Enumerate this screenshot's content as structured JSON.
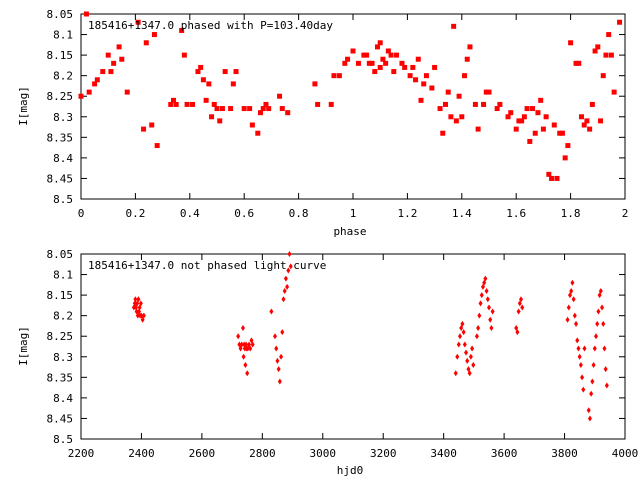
{
  "chart_data": [
    {
      "type": "scatter",
      "title": "185416+1347.0 phased with P=103.40day",
      "xlabel": "phase",
      "ylabel": "I[mag]",
      "xlim": [
        0,
        2
      ],
      "ylim": [
        8.5,
        8.05
      ],
      "y_inverted": true,
      "grid": false,
      "color": "#ff0000",
      "x_ticks": [
        "0",
        "0.2",
        "0.4",
        "0.6",
        "0.8",
        "1",
        "1.2",
        "1.4",
        "1.6",
        "1.8",
        "2"
      ],
      "y_ticks": [
        "8.05",
        "8.1",
        "8.15",
        "8.2",
        "8.25",
        "8.3",
        "8.35",
        "8.4",
        "8.45",
        "8.5"
      ],
      "points": [
        [
          0.0,
          8.25
        ],
        [
          0.02,
          8.05
        ],
        [
          0.03,
          8.24
        ],
        [
          0.05,
          8.22
        ],
        [
          0.06,
          8.21
        ],
        [
          0.08,
          8.19
        ],
        [
          0.1,
          8.15
        ],
        [
          0.11,
          8.19
        ],
        [
          0.12,
          8.17
        ],
        [
          0.14,
          8.13
        ],
        [
          0.15,
          8.16
        ],
        [
          0.17,
          8.24
        ],
        [
          0.21,
          8.07
        ],
        [
          0.23,
          8.33
        ],
        [
          0.24,
          8.12
        ],
        [
          0.26,
          8.32
        ],
        [
          0.27,
          8.1
        ],
        [
          0.28,
          8.37
        ],
        [
          0.33,
          8.27
        ],
        [
          0.34,
          8.26
        ],
        [
          0.35,
          8.27
        ],
        [
          0.37,
          8.09
        ],
        [
          0.38,
          8.15
        ],
        [
          0.39,
          8.27
        ],
        [
          0.41,
          8.27
        ],
        [
          0.43,
          8.19
        ],
        [
          0.44,
          8.18
        ],
        [
          0.45,
          8.21
        ],
        [
          0.46,
          8.26
        ],
        [
          0.47,
          8.22
        ],
        [
          0.48,
          8.3
        ],
        [
          0.49,
          8.27
        ],
        [
          0.5,
          8.28
        ],
        [
          0.51,
          8.31
        ],
        [
          0.52,
          8.28
        ],
        [
          0.53,
          8.19
        ],
        [
          0.55,
          8.28
        ],
        [
          0.56,
          8.22
        ],
        [
          0.57,
          8.19
        ],
        [
          0.6,
          8.28
        ],
        [
          0.62,
          8.28
        ],
        [
          0.63,
          8.32
        ],
        [
          0.65,
          8.34
        ],
        [
          0.66,
          8.29
        ],
        [
          0.67,
          8.28
        ],
        [
          0.68,
          8.27
        ],
        [
          0.69,
          8.28
        ],
        [
          0.73,
          8.25
        ],
        [
          0.74,
          8.28
        ],
        [
          0.76,
          8.29
        ],
        [
          0.86,
          8.22
        ],
        [
          0.87,
          8.27
        ],
        [
          0.92,
          8.27
        ],
        [
          0.93,
          8.2
        ],
        [
          0.95,
          8.2
        ],
        [
          0.97,
          8.17
        ],
        [
          0.98,
          8.16
        ],
        [
          1.0,
          8.14
        ],
        [
          1.02,
          8.17
        ],
        [
          1.04,
          8.15
        ],
        [
          1.05,
          8.15
        ],
        [
          1.06,
          8.17
        ],
        [
          1.07,
          8.17
        ],
        [
          1.08,
          8.19
        ],
        [
          1.09,
          8.13
        ],
        [
          1.1,
          8.12
        ],
        [
          1.1,
          8.18
        ],
        [
          1.11,
          8.16
        ],
        [
          1.12,
          8.17
        ],
        [
          1.13,
          8.14
        ],
        [
          1.14,
          8.15
        ],
        [
          1.15,
          8.19
        ],
        [
          1.16,
          8.15
        ],
        [
          1.18,
          8.17
        ],
        [
          1.19,
          8.18
        ],
        [
          1.21,
          8.2
        ],
        [
          1.22,
          8.18
        ],
        [
          1.23,
          8.21
        ],
        [
          1.24,
          8.16
        ],
        [
          1.25,
          8.26
        ],
        [
          1.26,
          8.22
        ],
        [
          1.27,
          8.2
        ],
        [
          1.29,
          8.23
        ],
        [
          1.3,
          8.18
        ],
        [
          1.32,
          8.28
        ],
        [
          1.33,
          8.34
        ],
        [
          1.34,
          8.27
        ],
        [
          1.35,
          8.24
        ],
        [
          1.36,
          8.3
        ],
        [
          1.37,
          8.08
        ],
        [
          1.38,
          8.31
        ],
        [
          1.39,
          8.25
        ],
        [
          1.4,
          8.3
        ],
        [
          1.41,
          8.2
        ],
        [
          1.42,
          8.16
        ],
        [
          1.43,
          8.13
        ],
        [
          1.45,
          8.27
        ],
        [
          1.46,
          8.33
        ],
        [
          1.48,
          8.27
        ],
        [
          1.49,
          8.24
        ],
        [
          1.5,
          8.24
        ],
        [
          1.53,
          8.28
        ],
        [
          1.54,
          8.27
        ],
        [
          1.57,
          8.3
        ],
        [
          1.58,
          8.29
        ],
        [
          1.6,
          8.33
        ],
        [
          1.61,
          8.31
        ],
        [
          1.62,
          8.31
        ],
        [
          1.63,
          8.3
        ],
        [
          1.64,
          8.28
        ],
        [
          1.65,
          8.36
        ],
        [
          1.66,
          8.28
        ],
        [
          1.67,
          8.34
        ],
        [
          1.68,
          8.29
        ],
        [
          1.69,
          8.26
        ],
        [
          1.7,
          8.33
        ],
        [
          1.71,
          8.3
        ],
        [
          1.72,
          8.44
        ],
        [
          1.73,
          8.45
        ],
        [
          1.74,
          8.32
        ],
        [
          1.75,
          8.45
        ],
        [
          1.76,
          8.34
        ],
        [
          1.77,
          8.34
        ],
        [
          1.78,
          8.4
        ],
        [
          1.79,
          8.37
        ],
        [
          1.8,
          8.12
        ],
        [
          1.82,
          8.17
        ],
        [
          1.83,
          8.17
        ],
        [
          1.84,
          8.3
        ],
        [
          1.85,
          8.32
        ],
        [
          1.86,
          8.31
        ],
        [
          1.87,
          8.33
        ],
        [
          1.88,
          8.27
        ],
        [
          1.89,
          8.14
        ],
        [
          1.9,
          8.13
        ],
        [
          1.91,
          8.31
        ],
        [
          1.92,
          8.2
        ],
        [
          1.93,
          8.15
        ],
        [
          1.94,
          8.1
        ],
        [
          1.95,
          8.15
        ],
        [
          1.96,
          8.24
        ],
        [
          1.98,
          8.07
        ]
      ]
    },
    {
      "type": "scatter",
      "title": "185416+1347.0 not phased light curve",
      "xlabel": "hjd0",
      "ylabel": "I[mag]",
      "xlim": [
        2200,
        4000
      ],
      "ylim": [
        8.5,
        8.05
      ],
      "y_inverted": true,
      "grid": false,
      "color": "#ff0000",
      "x_ticks": [
        "2200",
        "2400",
        "2600",
        "2800",
        "3000",
        "3200",
        "3400",
        "3600",
        "3800",
        "4000"
      ],
      "y_ticks": [
        "8.05",
        "8.1",
        "8.15",
        "8.2",
        "8.25",
        "8.3",
        "8.35",
        "8.4",
        "8.45",
        "8.5"
      ],
      "points": [
        [
          2375,
          8.18
        ],
        [
          2378,
          8.17
        ],
        [
          2380,
          8.16
        ],
        [
          2382,
          8.18
        ],
        [
          2384,
          8.19
        ],
        [
          2386,
          8.17
        ],
        [
          2388,
          8.2
        ],
        [
          2390,
          8.16
        ],
        [
          2392,
          8.19
        ],
        [
          2394,
          8.18
        ],
        [
          2396,
          8.2
        ],
        [
          2398,
          8.17
        ],
        [
          2400,
          8.2
        ],
        [
          2404,
          8.21
        ],
        [
          2408,
          8.2
        ],
        [
          2720,
          8.25
        ],
        [
          2724,
          8.27
        ],
        [
          2728,
          8.28
        ],
        [
          2732,
          8.27
        ],
        [
          2736,
          8.23
        ],
        [
          2738,
          8.3
        ],
        [
          2740,
          8.27
        ],
        [
          2742,
          8.28
        ],
        [
          2744,
          8.32
        ],
        [
          2746,
          8.27
        ],
        [
          2748,
          8.28
        ],
        [
          2750,
          8.34
        ],
        [
          2752,
          8.28
        ],
        [
          2756,
          8.27
        ],
        [
          2760,
          8.28
        ],
        [
          2764,
          8.26
        ],
        [
          2768,
          8.27
        ],
        [
          2830,
          8.19
        ],
        [
          2842,
          8.25
        ],
        [
          2846,
          8.28
        ],
        [
          2850,
          8.31
        ],
        [
          2854,
          8.33
        ],
        [
          2858,
          8.36
        ],
        [
          2862,
          8.3
        ],
        [
          2866,
          8.24
        ],
        [
          2870,
          8.16
        ],
        [
          2874,
          8.14
        ],
        [
          2878,
          8.11
        ],
        [
          2882,
          8.13
        ],
        [
          2886,
          8.09
        ],
        [
          2890,
          8.05
        ],
        [
          2894,
          8.08
        ],
        [
          3440,
          8.34
        ],
        [
          3445,
          8.3
        ],
        [
          3450,
          8.27
        ],
        [
          3454,
          8.25
        ],
        [
          3458,
          8.23
        ],
        [
          3462,
          8.22
        ],
        [
          3466,
          8.24
        ],
        [
          3470,
          8.27
        ],
        [
          3474,
          8.29
        ],
        [
          3478,
          8.31
        ],
        [
          3482,
          8.33
        ],
        [
          3486,
          8.34
        ],
        [
          3490,
          8.3
        ],
        [
          3494,
          8.28
        ],
        [
          3498,
          8.32
        ],
        [
          3510,
          8.25
        ],
        [
          3514,
          8.23
        ],
        [
          3518,
          8.2
        ],
        [
          3522,
          8.17
        ],
        [
          3526,
          8.15
        ],
        [
          3530,
          8.13
        ],
        [
          3534,
          8.12
        ],
        [
          3538,
          8.11
        ],
        [
          3542,
          8.14
        ],
        [
          3546,
          8.16
        ],
        [
          3550,
          8.18
        ],
        [
          3554,
          8.21
        ],
        [
          3558,
          8.23
        ],
        [
          3562,
          8.19
        ],
        [
          3640,
          8.23
        ],
        [
          3644,
          8.24
        ],
        [
          3648,
          8.19
        ],
        [
          3652,
          8.17
        ],
        [
          3656,
          8.16
        ],
        [
          3660,
          8.18
        ],
        [
          3810,
          8.21
        ],
        [
          3814,
          8.18
        ],
        [
          3818,
          8.15
        ],
        [
          3822,
          8.14
        ],
        [
          3826,
          8.12
        ],
        [
          3830,
          8.16
        ],
        [
          3834,
          8.2
        ],
        [
          3838,
          8.22
        ],
        [
          3842,
          8.26
        ],
        [
          3846,
          8.28
        ],
        [
          3850,
          8.3
        ],
        [
          3854,
          8.32
        ],
        [
          3858,
          8.35
        ],
        [
          3862,
          8.38
        ],
        [
          3866,
          8.28
        ],
        [
          3880,
          8.43
        ],
        [
          3884,
          8.45
        ],
        [
          3888,
          8.39
        ],
        [
          3892,
          8.36
        ],
        [
          3896,
          8.32
        ],
        [
          3900,
          8.28
        ],
        [
          3904,
          8.25
        ],
        [
          3908,
          8.22
        ],
        [
          3912,
          8.19
        ],
        [
          3916,
          8.15
        ],
        [
          3920,
          8.14
        ],
        [
          3924,
          8.18
        ],
        [
          3928,
          8.22
        ],
        [
          3932,
          8.28
        ],
        [
          3936,
          8.33
        ],
        [
          3940,
          8.37
        ]
      ]
    }
  ]
}
